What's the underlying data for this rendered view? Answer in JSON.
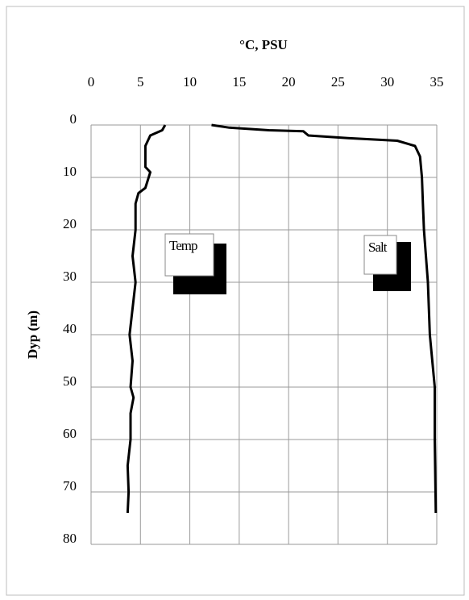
{
  "chart_data": {
    "type": "line",
    "xlabel": "°C, PSU",
    "ylabel": "Dyp (m)",
    "xlim": [
      0,
      35
    ],
    "xticks": [
      0,
      5,
      10,
      15,
      20,
      25,
      30,
      35
    ],
    "ylim": [
      0,
      80
    ],
    "yticks": [
      0,
      10,
      20,
      30,
      40,
      50,
      60,
      70,
      80
    ],
    "y_inverted": true,
    "grid": true,
    "series": [
      {
        "name": "Temp",
        "color": "#000000",
        "depth": [
          0,
          1,
          2,
          4,
          8,
          9,
          12,
          13,
          15,
          20,
          25,
          30,
          35,
          40,
          45,
          50,
          52,
          55,
          60,
          65,
          70,
          74
        ],
        "values": [
          7.5,
          7.2,
          6,
          5.5,
          5.5,
          6,
          5.5,
          4.8,
          4.5,
          4.5,
          4.2,
          4.5,
          4.2,
          3.9,
          4.2,
          4,
          4.3,
          4,
          4,
          3.7,
          3.8,
          3.7
        ]
      },
      {
        "name": "Salt",
        "color": "#000000",
        "depth": [
          0,
          0.5,
          1,
          1.2,
          2,
          2.5,
          3,
          4,
          6,
          10,
          15,
          20,
          30,
          40,
          50,
          60,
          74
        ],
        "values": [
          12.2,
          14,
          18,
          21.5,
          22,
          26,
          31,
          32.8,
          33.3,
          33.5,
          33.6,
          33.7,
          34.1,
          34.3,
          34.8,
          34.8,
          34.9
        ]
      }
    ]
  }
}
